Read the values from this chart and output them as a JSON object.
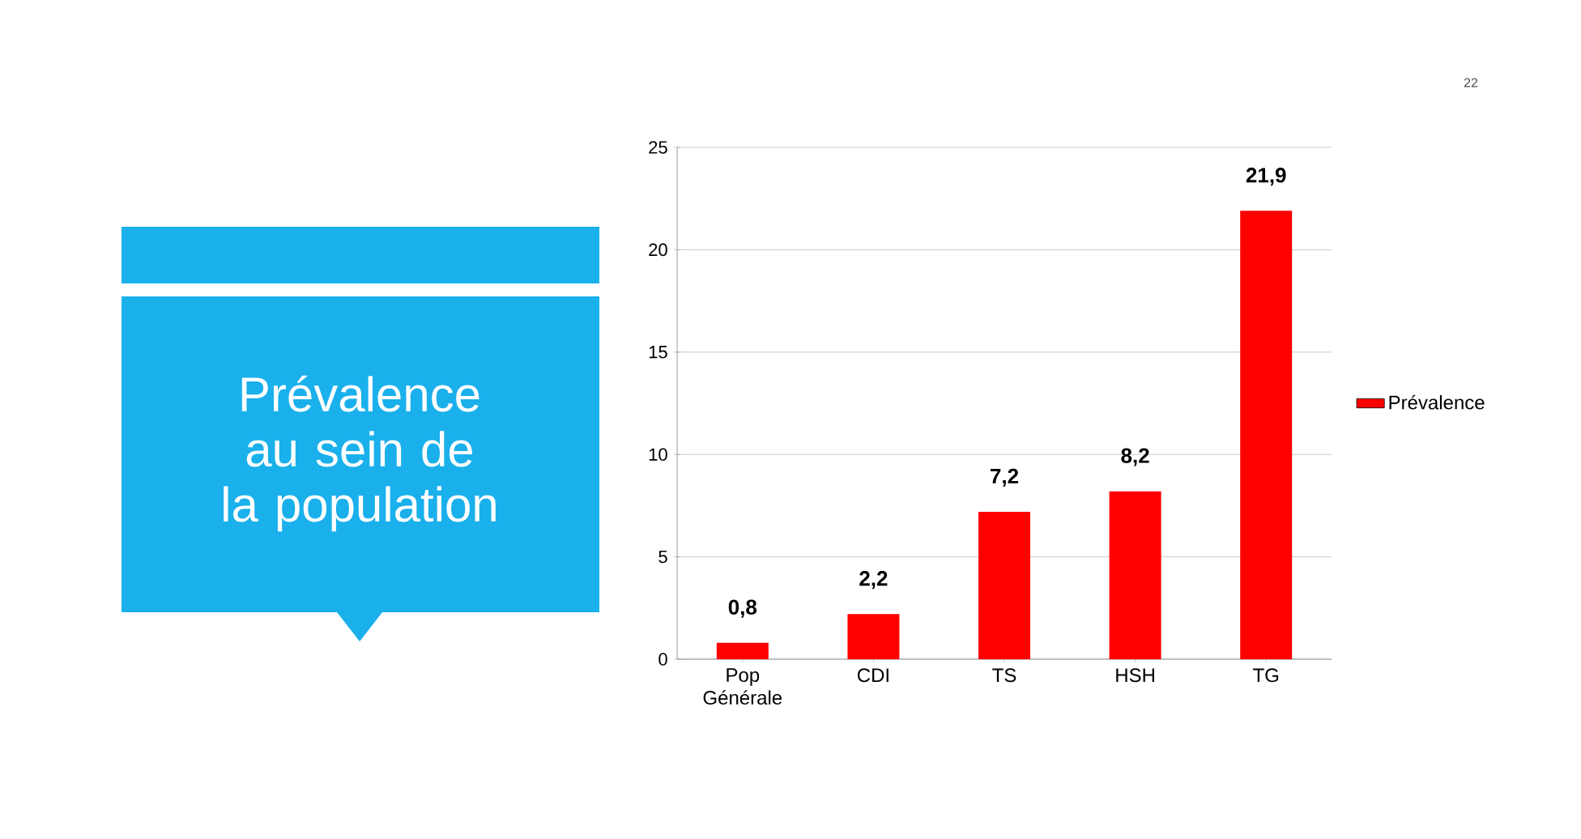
{
  "chart_data": {
    "type": "bar",
    "title": "Prévalence au sein de la population",
    "categories": [
      "Pop Générale",
      "CDI",
      "TS",
      "HSH",
      "TG"
    ],
    "series": [
      {
        "name": "Prévalence",
        "color": "#ff0000",
        "values": [
          0.8,
          2.2,
          7.2,
          8.2,
          21.9
        ],
        "value_labels": [
          "0,8",
          "2,2",
          "7,2",
          "8,2",
          "21,9"
        ]
      }
    ],
    "ylim": [
      0,
      25
    ],
    "yticks": [
      0,
      5,
      10,
      15,
      20,
      25
    ],
    "grid": "y",
    "legend": "right",
    "annotations": [
      "22"
    ]
  }
}
